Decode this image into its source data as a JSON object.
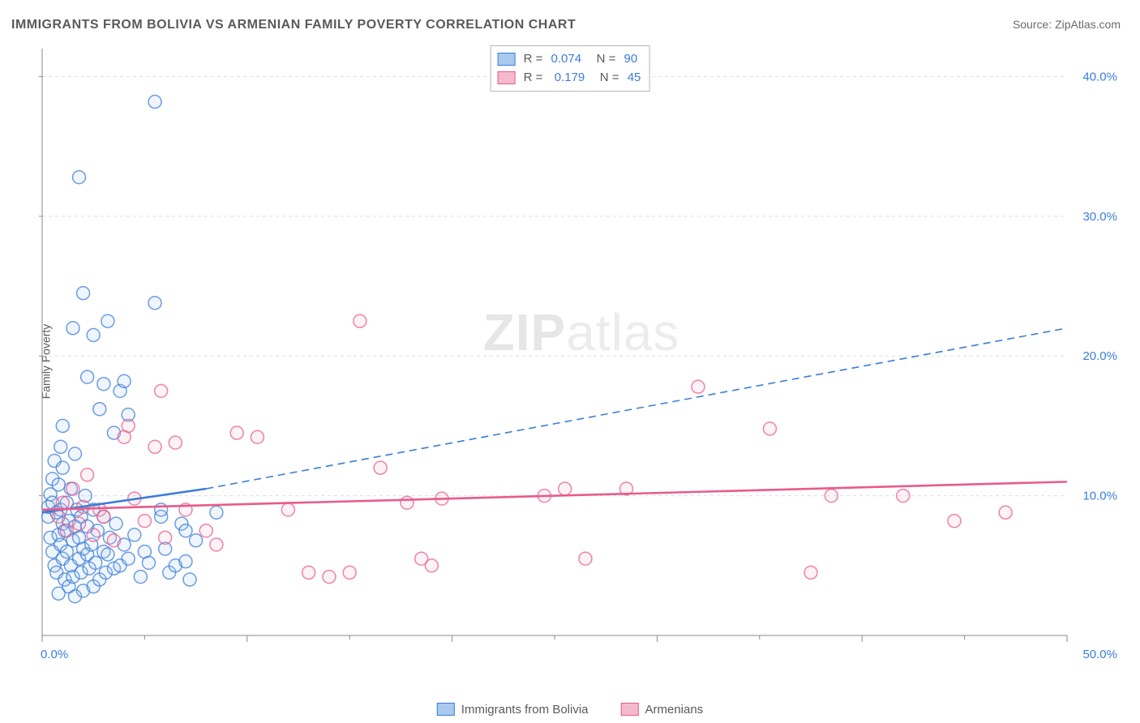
{
  "title": "IMMIGRANTS FROM BOLIVIA VS ARMENIAN FAMILY POVERTY CORRELATION CHART",
  "source": "Source: ZipAtlas.com",
  "watermark": {
    "zip": "ZIP",
    "atlas": "atlas"
  },
  "y_axis_label": "Family Poverty",
  "chart": {
    "type": "scatter",
    "background_color": "#ffffff",
    "grid_color": "#dedede",
    "axis_color": "#8a8a8a",
    "tick_color": "#8a8a8a",
    "tick_label_color": "#3b7dd8",
    "tick_fontsize": 15,
    "xlim": [
      0,
      50
    ],
    "ylim": [
      0,
      42
    ],
    "x_ticks": [
      0,
      10,
      20,
      30,
      40,
      50
    ],
    "x_tick_labels": [
      "0.0%",
      "",
      "",
      "",
      "",
      "50.0%"
    ],
    "x_minor_ticks": [
      5,
      15,
      25,
      35,
      45
    ],
    "y_ticks": [
      10,
      20,
      30,
      40
    ],
    "y_tick_labels": [
      "10.0%",
      "20.0%",
      "30.0%",
      "40.0%"
    ],
    "marker_radius": 8,
    "marker_stroke_width": 1.5,
    "marker_fill_opacity": 0.18,
    "series": [
      {
        "name": "Immigrants from Bolivia",
        "color": "#3b7dd8",
        "fill": "#a9c9ef",
        "R": "0.074",
        "N": "90",
        "trend": {
          "solid": {
            "x1": 0.0,
            "y1": 8.8,
            "x2": 8.0,
            "y2": 10.5,
            "width": 2.6
          },
          "dashed": {
            "x1": 8.0,
            "y1": 10.5,
            "x2": 50.0,
            "y2": 22.0,
            "dash": "9,6",
            "width": 1.6
          }
        },
        "points": [
          [
            0.3,
            8.5
          ],
          [
            0.3,
            9.2
          ],
          [
            0.4,
            10.1
          ],
          [
            0.4,
            7.0
          ],
          [
            0.5,
            11.2
          ],
          [
            0.5,
            6.0
          ],
          [
            0.5,
            9.5
          ],
          [
            0.6,
            5.0
          ],
          [
            0.6,
            12.5
          ],
          [
            0.7,
            8.8
          ],
          [
            0.7,
            4.5
          ],
          [
            0.8,
            7.2
          ],
          [
            0.8,
            10.8
          ],
          [
            0.8,
            3.0
          ],
          [
            0.9,
            6.5
          ],
          [
            0.9,
            9.0
          ],
          [
            1.0,
            5.5
          ],
          [
            1.0,
            8.0
          ],
          [
            1.0,
            12.0
          ],
          [
            1.1,
            4.0
          ],
          [
            1.1,
            7.5
          ],
          [
            1.2,
            6.0
          ],
          [
            1.2,
            9.5
          ],
          [
            1.3,
            3.5
          ],
          [
            1.3,
            8.2
          ],
          [
            1.4,
            5.0
          ],
          [
            1.4,
            10.5
          ],
          [
            1.5,
            6.8
          ],
          [
            1.5,
            4.2
          ],
          [
            1.6,
            7.8
          ],
          [
            1.6,
            2.8
          ],
          [
            1.7,
            9.0
          ],
          [
            1.8,
            5.5
          ],
          [
            1.8,
            7.0
          ],
          [
            1.9,
            4.5
          ],
          [
            1.9,
            8.5
          ],
          [
            2.0,
            6.2
          ],
          [
            2.0,
            3.2
          ],
          [
            2.1,
            10.0
          ],
          [
            2.2,
            5.8
          ],
          [
            2.2,
            7.8
          ],
          [
            2.3,
            4.8
          ],
          [
            2.4,
            6.5
          ],
          [
            2.5,
            9.0
          ],
          [
            2.5,
            3.5
          ],
          [
            2.6,
            5.2
          ],
          [
            2.7,
            7.5
          ],
          [
            2.8,
            4.0
          ],
          [
            3.0,
            6.0
          ],
          [
            3.0,
            8.5
          ],
          [
            3.1,
            4.5
          ],
          [
            3.2,
            5.8
          ],
          [
            3.3,
            7.0
          ],
          [
            3.5,
            4.8
          ],
          [
            3.6,
            8.0
          ],
          [
            3.8,
            5.0
          ],
          [
            4.0,
            6.5
          ],
          [
            4.2,
            5.5
          ],
          [
            4.5,
            7.2
          ],
          [
            4.8,
            4.2
          ],
          [
            5.0,
            6.0
          ],
          [
            5.2,
            5.2
          ],
          [
            5.5,
            23.8
          ],
          [
            5.8,
            8.5
          ],
          [
            6.0,
            6.2
          ],
          [
            6.2,
            4.5
          ],
          [
            6.5,
            5.0
          ],
          [
            6.8,
            8.0
          ],
          [
            7.0,
            7.5
          ],
          [
            7.0,
            5.3
          ],
          [
            7.2,
            4.0
          ],
          [
            7.5,
            6.8
          ],
          [
            1.5,
            22.0
          ],
          [
            2.0,
            24.5
          ],
          [
            2.5,
            21.5
          ],
          [
            3.0,
            18.0
          ],
          [
            3.2,
            22.5
          ],
          [
            3.8,
            17.5
          ],
          [
            4.0,
            18.2
          ],
          [
            4.2,
            15.8
          ],
          [
            2.2,
            18.5
          ],
          [
            1.0,
            15.0
          ],
          [
            2.8,
            16.2
          ],
          [
            1.8,
            32.8
          ],
          [
            5.5,
            38.2
          ],
          [
            3.5,
            14.5
          ],
          [
            0.9,
            13.5
          ],
          [
            1.6,
            13.0
          ],
          [
            5.8,
            9.0
          ],
          [
            8.5,
            8.8
          ]
        ]
      },
      {
        "name": "Armenians",
        "color": "#e85b8a",
        "fill": "#f5b9cd",
        "R": "0.179",
        "N": "45",
        "trend": {
          "solid": {
            "x1": 0.0,
            "y1": 9.0,
            "x2": 50.0,
            "y2": 11.0,
            "width": 2.6
          }
        },
        "points": [
          [
            0.8,
            8.5
          ],
          [
            1.0,
            9.5
          ],
          [
            1.2,
            7.5
          ],
          [
            1.5,
            10.5
          ],
          [
            1.8,
            8.0
          ],
          [
            2.0,
            9.2
          ],
          [
            2.2,
            11.5
          ],
          [
            2.5,
            7.2
          ],
          [
            2.8,
            9.0
          ],
          [
            3.0,
            8.5
          ],
          [
            3.5,
            6.8
          ],
          [
            4.0,
            14.2
          ],
          [
            4.2,
            15.0
          ],
          [
            4.5,
            9.8
          ],
          [
            5.0,
            8.2
          ],
          [
            5.5,
            13.5
          ],
          [
            5.8,
            17.5
          ],
          [
            6.0,
            7.0
          ],
          [
            6.5,
            13.8
          ],
          [
            7.0,
            9.0
          ],
          [
            8.0,
            7.5
          ],
          [
            8.5,
            6.5
          ],
          [
            9.5,
            14.5
          ],
          [
            10.5,
            14.2
          ],
          [
            12.0,
            9.0
          ],
          [
            13.0,
            4.5
          ],
          [
            14.0,
            4.2
          ],
          [
            15.0,
            4.5
          ],
          [
            15.5,
            22.5
          ],
          [
            16.5,
            12.0
          ],
          [
            17.8,
            9.5
          ],
          [
            18.5,
            5.5
          ],
          [
            19.0,
            5.0
          ],
          [
            19.5,
            9.8
          ],
          [
            24.5,
            10.0
          ],
          [
            25.5,
            10.5
          ],
          [
            26.5,
            5.5
          ],
          [
            28.5,
            10.5
          ],
          [
            32.0,
            17.8
          ],
          [
            35.5,
            14.8
          ],
          [
            37.5,
            4.5
          ],
          [
            38.5,
            10.0
          ],
          [
            42.0,
            10.0
          ],
          [
            44.5,
            8.2
          ],
          [
            47.0,
            8.8
          ]
        ]
      }
    ]
  },
  "stats_legend": {
    "rows": [
      {
        "swatch": "#a9c9ef",
        "border": "#3b7dd8",
        "r_label": "R = ",
        "r_val": "0.074",
        "n_label": "   N = ",
        "n_val": "90"
      },
      {
        "swatch": "#f5b9cd",
        "border": "#e85b8a",
        "r_label": "R =  ",
        "r_val": "0.179",
        "n_label": "   N = ",
        "n_val": "45"
      }
    ]
  },
  "x_legend": {
    "items": [
      {
        "swatch": "#a9c9ef",
        "border": "#3b7dd8",
        "label": "Immigrants from Bolivia"
      },
      {
        "swatch": "#f5b9cd",
        "border": "#e85b8a",
        "label": "Armenians"
      }
    ]
  }
}
